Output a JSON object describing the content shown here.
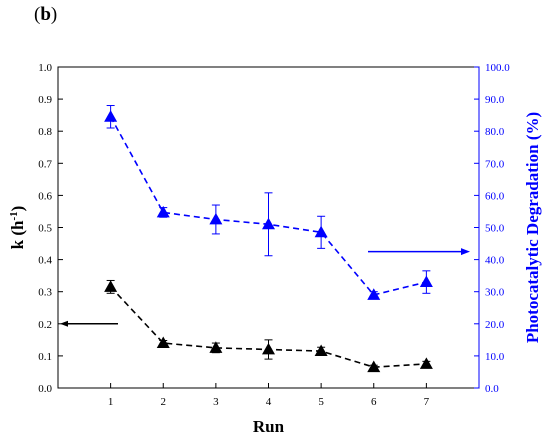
{
  "panel_label": {
    "open": "(",
    "letter": "b",
    "close": ")"
  },
  "chart_data": {
    "type": "line",
    "xlabel": "Run",
    "x": [
      1,
      2,
      3,
      4,
      5,
      6,
      7
    ],
    "xticks": [
      "1",
      "2",
      "3",
      "4",
      "5",
      "6",
      "7"
    ],
    "xlim": [
      0,
      8
    ],
    "y_left": {
      "label": "k (h",
      "label_sup": "-1",
      "label_close": ")",
      "ylim": [
        0,
        1.0
      ],
      "ticks": [
        "0.0",
        "0.1",
        "0.2",
        "0.3",
        "0.4",
        "0.5",
        "0.6",
        "0.7",
        "0.8",
        "0.9",
        "1.0"
      ],
      "color": "#000000"
    },
    "y_right": {
      "label": "Photocatalytic Degradation (%)",
      "ylim": [
        0,
        100
      ],
      "ticks": [
        "0.0",
        "10.0",
        "20.0",
        "30.0",
        "40.0",
        "50.0",
        "60.0",
        "70.0",
        "80.0",
        "90.0",
        "100.0"
      ],
      "color": "#0000ff"
    },
    "series": [
      {
        "axis": "left",
        "color": "#000000",
        "marker": "triangle",
        "values": [
          0.315,
          0.14,
          0.125,
          0.12,
          0.115,
          0.065,
          0.075
        ],
        "errors": [
          0.02,
          0.008,
          0.015,
          0.03,
          0.012,
          0.006,
          0.008
        ]
      },
      {
        "axis": "right",
        "color": "#0000ff",
        "marker": "triangle",
        "values": [
          84.5,
          54.7,
          52.5,
          51.0,
          48.5,
          29.0,
          33.0
        ],
        "errors": [
          3.5,
          1.5,
          4.5,
          9.8,
          5.0,
          1.0,
          3.5
        ]
      }
    ],
    "annotations": [
      {
        "type": "arrow",
        "direction": "left",
        "points_to": "left axis",
        "color": "#000000"
      },
      {
        "type": "arrow",
        "direction": "right",
        "points_to": "right axis",
        "color": "#0000ff"
      }
    ]
  }
}
